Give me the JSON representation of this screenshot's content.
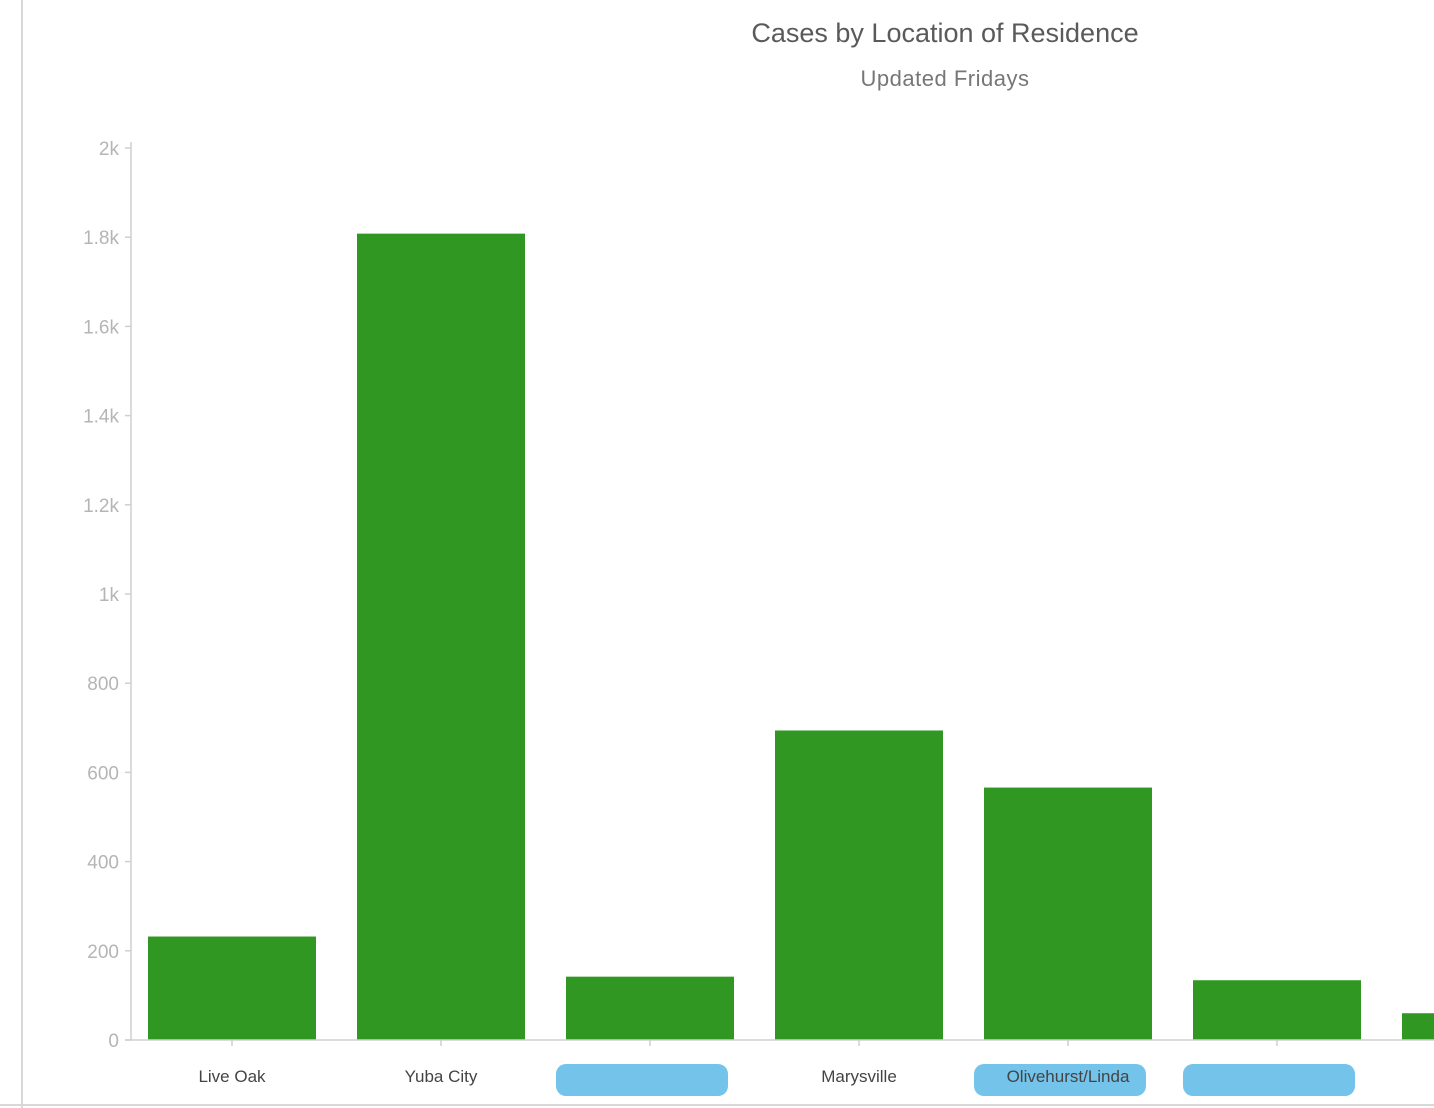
{
  "header": {
    "title": "Cases by Location of Residence",
    "subtitle": "Updated Fridays"
  },
  "colors": {
    "bar": "#2f9722",
    "axis": "#cfcfcf",
    "redaction": "#5bb8e6"
  },
  "chart_data": {
    "type": "bar",
    "title": "Cases by Location of Residence",
    "subtitle": "Updated Fridays",
    "ylim": [
      0,
      2000
    ],
    "y_ticks": [
      0,
      200,
      400,
      600,
      800,
      1000,
      1200,
      1400,
      1600,
      1800,
      2000
    ],
    "y_tick_labels": [
      "0",
      "200",
      "400",
      "600",
      "800",
      "1k",
      "1.2k",
      "1.4k",
      "1.6k",
      "1.8k",
      "2k"
    ],
    "categories": [
      "Live Oak",
      "Yuba City",
      "",
      "Marysville",
      "Olivehurst/Linda",
      "",
      ""
    ],
    "redacted": [
      false,
      false,
      true,
      false,
      true,
      true,
      false
    ],
    "values": [
      232,
      1808,
      142,
      694,
      566,
      134,
      60
    ]
  }
}
